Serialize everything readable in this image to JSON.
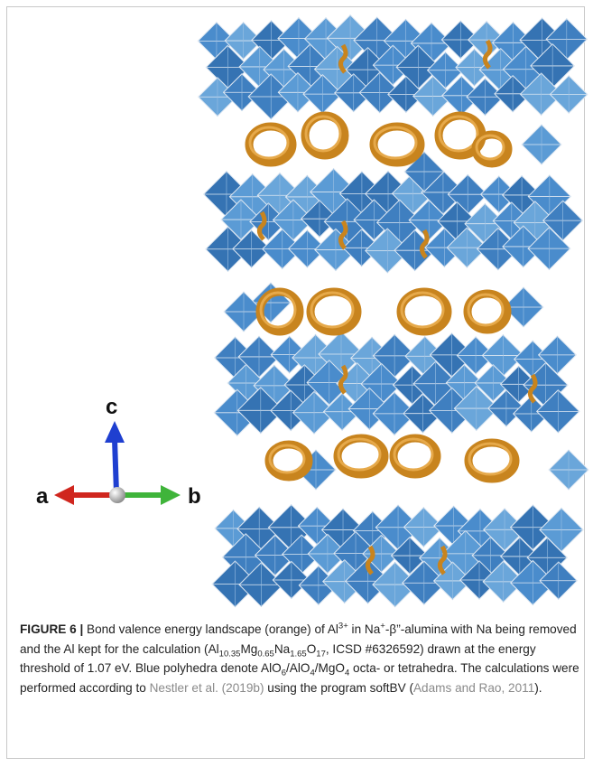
{
  "figure": {
    "axes": {
      "a": "a",
      "b": "b",
      "c": "c"
    },
    "caption": [
      "FIGURE 6 |",
      " Bond valence energy landscape (orange) of Al",
      "3+",
      " in Na",
      "+",
      "-β”-alumina with Na being removed and the Al kept for the calculation (Al",
      "10.35",
      "Mg",
      "0.65",
      "Na",
      "1.65",
      "O",
      "17",
      ", ICSD #6326592) drawn at the energy threshold of 1.07 eV. Blue polyhedra denote AlO",
      "6",
      "/AlO",
      "4",
      "/MgO",
      "4",
      " octa- or tetrahedra. The calculations were performed according to ",
      "Nestler et al. (2019b)",
      " using the program softBV (",
      "Adams and Rao, 2011",
      ")."
    ]
  }
}
